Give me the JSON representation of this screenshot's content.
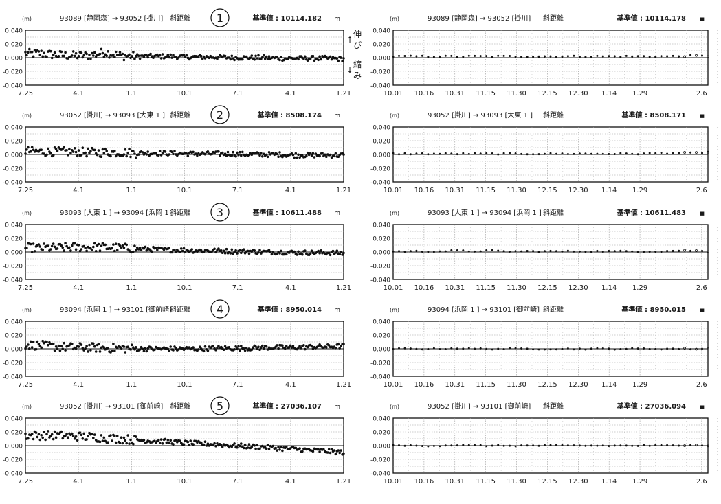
{
  "side_labels": {
    "up_arrow": "↑",
    "up_text": "伸び",
    "down_arrow": "↓",
    "down_text": "縮み"
  },
  "chart_data": [
    {
      "type": "scatter",
      "number": "1",
      "unit_label": "(m)",
      "station_pair": "93089 [静岡森] → 93052 [掛川]",
      "measure": "斜距離",
      "base_label": "基準値 : 10114.182",
      "base_unit": "m",
      "ylim": [
        -0.04,
        0.04
      ],
      "yticks": [
        "0.040",
        "0.020",
        "0.000",
        "-0.020",
        "-0.040"
      ],
      "xtick_labels": [
        "7.25",
        "4.1",
        "1.1",
        "10.1",
        "7.1",
        "4.1",
        "1.21"
      ],
      "series": [
        {
          "x": [
            0,
            0.05,
            0.1,
            0.15,
            0.2,
            0.25,
            0.3,
            0.35,
            0.4,
            0.45,
            0.5,
            0.55,
            0.6,
            0.65,
            0.7,
            0.75,
            0.8,
            0.85,
            0.9,
            0.95,
            1
          ],
          "y": [
            0.006,
            0.006,
            0.004,
            0.003,
            0.003,
            0.008,
            0.003,
            0.002,
            0.002,
            0.002,
            0.001,
            0.001,
            0.001,
            0,
            0,
            0,
            -0.001,
            -0.001,
            -0.001,
            -0.001,
            -0.002
          ]
        }
      ]
    },
    {
      "type": "scatter",
      "number": "",
      "unit_label": "(m)",
      "station_pair": "93089 [静岡森] → 93052 [掛川]",
      "measure": "斜距離",
      "base_label": "基準値 : 10114.178",
      "base_unit": "■",
      "ylim": [
        -0.04,
        0.04
      ],
      "yticks": [
        "0.040",
        "0.020",
        "0.000",
        "-0.020",
        "-0.040"
      ],
      "xtick_labels": [
        "10.01",
        "10.16",
        "10.31",
        "11.15",
        "11.30",
        "12.15",
        "12.30",
        "1.14",
        "1.29",
        "2.6"
      ],
      "series": [
        {
          "x": [
            0,
            0.05,
            0.1,
            0.15,
            0.2,
            0.25,
            0.3,
            0.35,
            0.4,
            0.45,
            0.5,
            0.55,
            0.6,
            0.65,
            0.7,
            0.75,
            0.8,
            0.85,
            0.9,
            0.95,
            1
          ],
          "y": [
            0.002,
            0.002,
            0.002,
            0.002,
            0.002,
            0.002,
            0.002,
            0.002,
            0.002,
            0.002,
            0.002,
            0.002,
            0.002,
            0.002,
            0.002,
            0.002,
            0.002,
            0.002,
            0.002,
            0.003,
            0.002
          ]
        }
      ]
    },
    {
      "type": "scatter",
      "number": "2",
      "unit_label": "(m)",
      "station_pair": "93052 [掛川] → 93093 [大東 1 ]",
      "measure": "斜距離",
      "base_label": "基準値 : 8508.174",
      "base_unit": "m",
      "ylim": [
        -0.04,
        0.04
      ],
      "yticks": [
        "0.040",
        "0.020",
        "0.000",
        "-0.020",
        "-0.040"
      ],
      "xtick_labels": [
        "7.25",
        "4.1",
        "1.1",
        "10.1",
        "7.1",
        "4.1",
        "1.21"
      ],
      "series": [
        {
          "x": [
            0,
            0.05,
            0.1,
            0.15,
            0.2,
            0.25,
            0.3,
            0.35,
            0.4,
            0.45,
            0.5,
            0.55,
            0.6,
            0.65,
            0.7,
            0.75,
            0.8,
            0.85,
            0.9,
            0.95,
            1
          ],
          "y": [
            0.005,
            0.004,
            0.004,
            0.004,
            0.003,
            0.003,
            0.003,
            0.002,
            0.002,
            0.002,
            0.001,
            0.001,
            0.001,
            0.001,
            0,
            0,
            0,
            -0.001,
            -0.001,
            -0.001,
            -0.001
          ]
        }
      ]
    },
    {
      "type": "scatter",
      "number": "",
      "unit_label": "(m)",
      "station_pair": "93052 [掛川] → 93093 [大東 1 ]",
      "measure": "斜距離",
      "base_label": "基準値 : 8508.171",
      "base_unit": "■",
      "ylim": [
        -0.04,
        0.04
      ],
      "yticks": [
        "0.040",
        "0.020",
        "0.000",
        "-0.020",
        "-0.040"
      ],
      "xtick_labels": [
        "10.01",
        "10.16",
        "10.31",
        "11.15",
        "11.30",
        "12.15",
        "12.30",
        "1.14",
        "1.29",
        "2.6"
      ],
      "series": [
        {
          "x": [
            0,
            0.05,
            0.1,
            0.15,
            0.2,
            0.25,
            0.3,
            0.35,
            0.4,
            0.45,
            0.5,
            0.55,
            0.6,
            0.65,
            0.7,
            0.75,
            0.8,
            0.85,
            0.9,
            0.95,
            1
          ],
          "y": [
            0.001,
            0.001,
            0.001,
            0.001,
            0.001,
            0.001,
            0.001,
            0.001,
            0.001,
            0.001,
            0.001,
            0.001,
            0.001,
            0.001,
            0.001,
            0.001,
            0.001,
            0.002,
            0.002,
            0.002,
            0.003
          ]
        }
      ]
    },
    {
      "type": "scatter",
      "number": "3",
      "unit_label": "(m)",
      "station_pair": "93093 [大東 1 ] → 93094 [浜岡 1 ]",
      "measure": "斜距離",
      "base_label": "基準値 : 10611.488",
      "base_unit": "m",
      "ylim": [
        -0.04,
        0.04
      ],
      "yticks": [
        "0.040",
        "0.020",
        "0.000",
        "-0.020",
        "-0.040"
      ],
      "xtick_labels": [
        "7.25",
        "4.1",
        "1.1",
        "10.1",
        "7.1",
        "4.1",
        "1.21"
      ],
      "series": [
        {
          "x": [
            0,
            0.05,
            0.1,
            0.15,
            0.2,
            0.25,
            0.3,
            0.35,
            0.4,
            0.45,
            0.5,
            0.55,
            0.6,
            0.65,
            0.7,
            0.75,
            0.8,
            0.85,
            0.9,
            0.95,
            1
          ],
          "y": [
            0.006,
            0.006,
            0.006,
            0.007,
            0.007,
            0.007,
            0.006,
            0.005,
            0.004,
            0.003,
            0.003,
            0.002,
            0.002,
            0.001,
            0.001,
            0,
            0,
            -0.001,
            -0.001,
            -0.001,
            -0.002
          ]
        }
      ]
    },
    {
      "type": "scatter",
      "number": "",
      "unit_label": "(m)",
      "station_pair": "93093 [大東 1 ] → 93094 [浜岡 1 ]",
      "measure": "斜距離",
      "base_label": "基準値 : 10611.483",
      "base_unit": "■",
      "ylim": [
        -0.04,
        0.04
      ],
      "yticks": [
        "0.040",
        "0.020",
        "0.000",
        "-0.020",
        "-0.040"
      ],
      "xtick_labels": [
        "10.01",
        "10.16",
        "10.31",
        "11.15",
        "11.30",
        "12.15",
        "12.30",
        "1.14",
        "1.29",
        "2.6"
      ],
      "series": [
        {
          "x": [
            0,
            0.05,
            0.1,
            0.15,
            0.2,
            0.25,
            0.3,
            0.35,
            0.4,
            0.45,
            0.5,
            0.55,
            0.6,
            0.65,
            0.7,
            0.75,
            0.8,
            0.85,
            0.9,
            0.95,
            1
          ],
          "y": [
            0.001,
            0.001,
            0.001,
            0.001,
            0.002,
            0.001,
            0.002,
            0.001,
            0.001,
            0.001,
            0.001,
            0.001,
            0.001,
            0.001,
            0.001,
            0.001,
            0.001,
            0.001,
            0.002,
            0.002,
            0.001
          ]
        }
      ]
    },
    {
      "type": "scatter",
      "number": "4",
      "unit_label": "(m)",
      "station_pair": "93094 [浜岡 1 ] → 93101 [御前崎]",
      "measure": "斜距離",
      "base_label": "基準値 : 8950.014",
      "base_unit": "m",
      "ylim": [
        -0.04,
        0.04
      ],
      "yticks": [
        "0.040",
        "0.020",
        "0.000",
        "-0.020",
        "-0.040"
      ],
      "xtick_labels": [
        "7.25",
        "4.1",
        "1.1",
        "10.1",
        "7.1",
        "4.1",
        "1.21"
      ],
      "series": [
        {
          "x": [
            0,
            0.05,
            0.1,
            0.15,
            0.2,
            0.25,
            0.3,
            0.35,
            0.4,
            0.45,
            0.5,
            0.55,
            0.6,
            0.65,
            0.7,
            0.75,
            0.8,
            0.85,
            0.9,
            0.95,
            1
          ],
          "y": [
            0.006,
            0.005,
            0.003,
            0.002,
            0.002,
            0.001,
            0.001,
            0,
            0,
            0,
            0,
            0,
            0.001,
            0.001,
            0.001,
            0.002,
            0.002,
            0.002,
            0.003,
            0.003,
            0.004
          ]
        }
      ]
    },
    {
      "type": "scatter",
      "number": "",
      "unit_label": "(m)",
      "station_pair": "93094 [浜岡 1 ] → 93101 [御前崎]",
      "measure": "斜距離",
      "base_label": "基準値 : 8950.015",
      "base_unit": "■",
      "ylim": [
        -0.04,
        0.04
      ],
      "yticks": [
        "0.040",
        "0.020",
        "0.000",
        "-0.020",
        "-0.040"
      ],
      "xtick_labels": [
        "10.01",
        "10.16",
        "10.31",
        "11.15",
        "11.30",
        "12.15",
        "12.30",
        "1.14",
        "1.29",
        "2.6"
      ],
      "series": [
        {
          "x": [
            0,
            0.05,
            0.1,
            0.15,
            0.2,
            0.25,
            0.3,
            0.35,
            0.4,
            0.45,
            0.5,
            0.55,
            0.6,
            0.65,
            0.7,
            0.75,
            0.8,
            0.85,
            0.9,
            0.95,
            1
          ],
          "y": [
            0,
            0,
            0,
            0,
            0.001,
            0,
            0,
            0,
            0,
            0,
            0,
            0,
            0,
            0,
            0,
            0,
            0,
            0,
            0,
            0,
            0
          ]
        }
      ]
    },
    {
      "type": "scatter",
      "number": "5",
      "unit_label": "(m)",
      "station_pair": "93052 [掛川] → 93101 [御前崎]",
      "measure": "斜距離",
      "base_label": "基準値 : 27036.107",
      "base_unit": "m",
      "ylim": [
        -0.04,
        0.04
      ],
      "yticks": [
        "0.040",
        "0.020",
        "0.000",
        "-0.020",
        "-0.040"
      ],
      "xtick_labels": [
        "7.25",
        "4.1",
        "1.1",
        "10.1",
        "7.1",
        "4.1",
        "1.21"
      ],
      "series": [
        {
          "x": [
            0,
            0.05,
            0.1,
            0.15,
            0.2,
            0.25,
            0.3,
            0.35,
            0.4,
            0.45,
            0.5,
            0.55,
            0.6,
            0.65,
            0.7,
            0.75,
            0.8,
            0.85,
            0.9,
            0.95,
            1
          ],
          "y": [
            0.015,
            0.015,
            0.015,
            0.014,
            0.013,
            0.011,
            0.01,
            0.008,
            0.007,
            0.006,
            0.004,
            0.003,
            0.002,
            0,
            -0.001,
            -0.002,
            -0.004,
            -0.005,
            -0.007,
            -0.008,
            -0.01
          ]
        }
      ]
    },
    {
      "type": "scatter",
      "number": "",
      "unit_label": "(m)",
      "station_pair": "93052 [掛川] → 93101 [御前崎]",
      "measure": "斜距離",
      "base_label": "基準値 : 27036.094",
      "base_unit": "■",
      "ylim": [
        -0.04,
        0.04
      ],
      "yticks": [
        "0.040",
        "0.020",
        "0.000",
        "-0.020",
        "-0.040"
      ],
      "xtick_labels": [
        "10.01",
        "10.16",
        "10.31",
        "11.15",
        "11.30",
        "12.15",
        "12.30",
        "1.14",
        "1.29",
        "2.6"
      ],
      "series": [
        {
          "x": [
            0,
            0.05,
            0.1,
            0.15,
            0.2,
            0.25,
            0.3,
            0.35,
            0.4,
            0.45,
            0.5,
            0.55,
            0.6,
            0.65,
            0.7,
            0.75,
            0.8,
            0.85,
            0.9,
            0.95,
            1
          ],
          "y": [
            0,
            0,
            0,
            0,
            0.001,
            0,
            0,
            0,
            0,
            0,
            0,
            0,
            0,
            0,
            0,
            0,
            0,
            0,
            0,
            0.002,
            0
          ]
        }
      ]
    }
  ]
}
